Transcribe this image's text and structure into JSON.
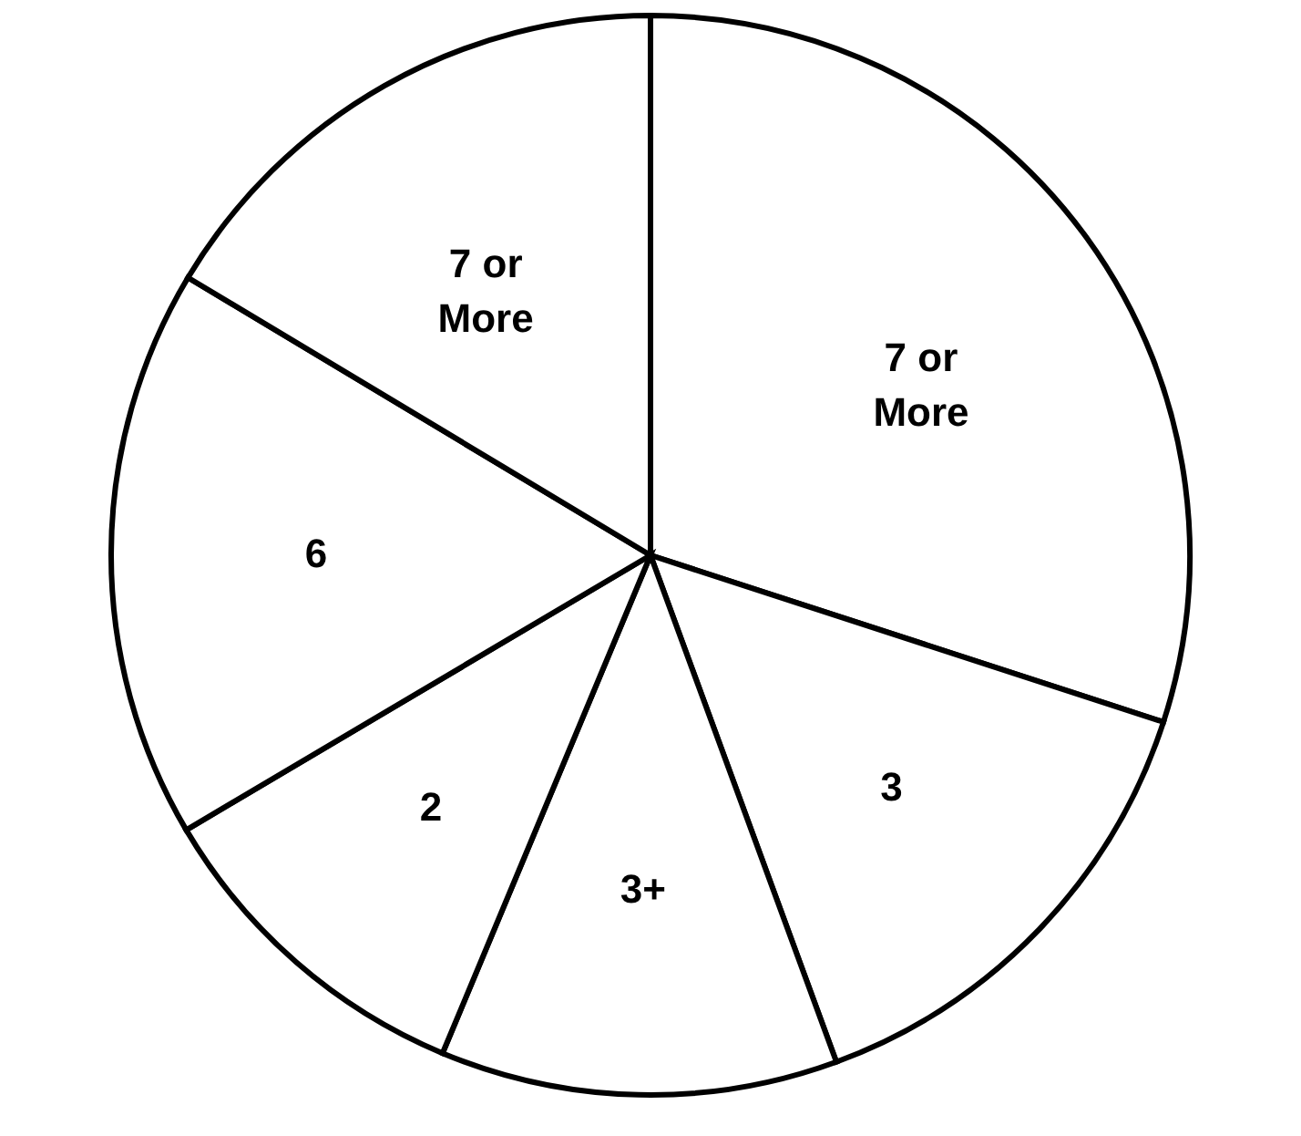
{
  "chart_data": {
    "type": "pie",
    "categories": [
      "7 or More",
      "3",
      "3+",
      "2",
      "6",
      "7 or More"
    ],
    "values": [
      30.0,
      14.4,
      11.9,
      10.2,
      17.1,
      16.4
    ],
    "colors": [
      "#ffffff",
      "#ffffff",
      "#ffffff",
      "#ffffff",
      "#ffffff",
      "#ffffff"
    ]
  }
}
